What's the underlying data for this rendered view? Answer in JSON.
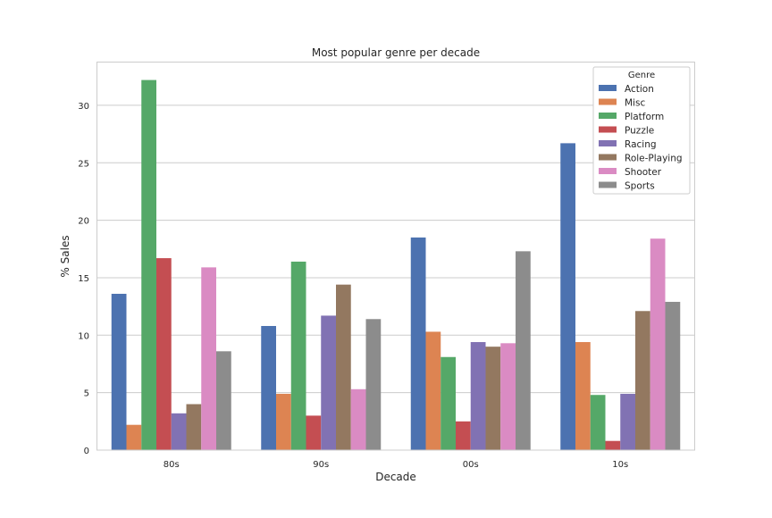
{
  "chart_data": {
    "type": "bar",
    "title": "Most popular genre per decade",
    "xlabel": "Decade",
    "ylabel": "% Sales",
    "categories": [
      "80s",
      "90s",
      "00s",
      "10s"
    ],
    "ylim": [
      0,
      33.8
    ],
    "yticks": [
      0,
      5,
      10,
      15,
      20,
      25,
      30
    ],
    "grid": true,
    "legend_title": "Genre",
    "legend_position": "top-right",
    "series": [
      {
        "name": "Action",
        "color": "#4c72b0",
        "values": [
          13.6,
          10.8,
          18.5,
          26.7
        ]
      },
      {
        "name": "Misc",
        "color": "#dd8452",
        "values": [
          2.2,
          4.9,
          10.3,
          9.4
        ]
      },
      {
        "name": "Platform",
        "color": "#55a868",
        "values": [
          32.2,
          16.4,
          8.1,
          4.8
        ]
      },
      {
        "name": "Puzzle",
        "color": "#c44e52",
        "values": [
          16.7,
          3.0,
          2.5,
          0.8
        ]
      },
      {
        "name": "Racing",
        "color": "#8172b3",
        "values": [
          3.2,
          11.7,
          9.4,
          4.9
        ]
      },
      {
        "name": "Role-Playing",
        "color": "#937860",
        "values": [
          4.0,
          14.4,
          9.0,
          12.1
        ]
      },
      {
        "name": "Shooter",
        "color": "#da8bc3",
        "values": [
          15.9,
          5.3,
          9.3,
          18.4
        ]
      },
      {
        "name": "Sports",
        "color": "#8c8c8c",
        "values": [
          8.6,
          11.4,
          17.3,
          12.9
        ]
      }
    ]
  }
}
